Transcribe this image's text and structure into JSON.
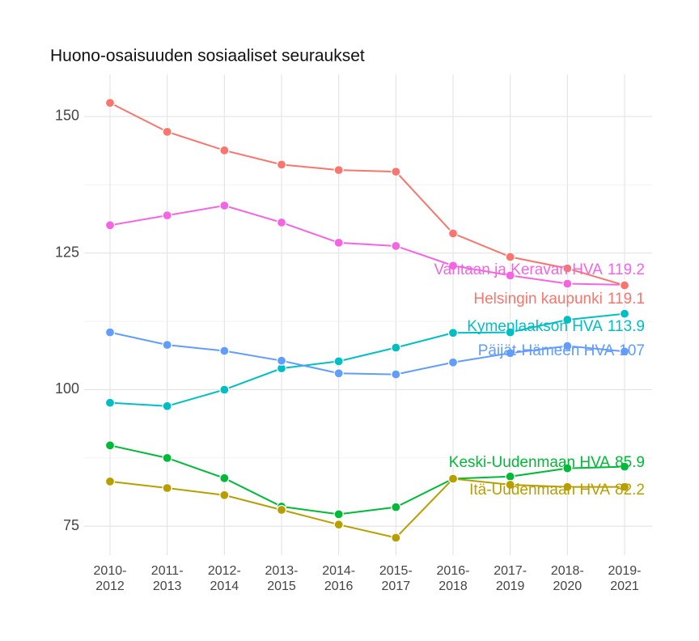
{
  "chart_data": {
    "type": "line",
    "title": "Huono-osaisuuden sosiaaliset seuraukset",
    "categories": [
      "2010-\n2012",
      "2011-\n2013",
      "2012-\n2014",
      "2013-\n2015",
      "2014-\n2016",
      "2015-\n2017",
      "2016-\n2018",
      "2017-\n2019",
      "2018-\n2020",
      "2019-\n2021"
    ],
    "ylim": [
      69.7,
      157.7
    ],
    "yticks": [
      75,
      100,
      125,
      150
    ],
    "y_minor_gridlines": [
      87.5,
      112.5,
      137.5
    ],
    "grid": true,
    "series": [
      {
        "name": "Vantaan ja Keravan HVA",
        "color": "#F564E3",
        "values": [
          130.1,
          131.9,
          133.7,
          130.6,
          126.9,
          126.3,
          122.7,
          120.9,
          119.4,
          119.2
        ]
      },
      {
        "name": "Helsingin kaupunki",
        "color": "#F8766D",
        "values": [
          152.5,
          147.2,
          143.8,
          141.2,
          140.2,
          139.9,
          128.6,
          124.3,
          122.2,
          119.1
        ]
      },
      {
        "name": "Kymenlaakson HVA",
        "color": "#00BFC4",
        "values": [
          97.6,
          97.0,
          100.0,
          103.9,
          105.2,
          107.7,
          110.4,
          110.5,
          112.8,
          113.9
        ]
      },
      {
        "name": "Päijät-Hämeen HVA",
        "color": "#619CFF",
        "values": [
          110.5,
          108.2,
          107.1,
          105.3,
          103.0,
          102.8,
          105.0,
          106.7,
          108.0,
          107
        ]
      },
      {
        "name": "Keski-Uudenmaan HVA",
        "color": "#00BA38",
        "values": [
          89.8,
          87.5,
          83.8,
          78.6,
          77.2,
          78.5,
          83.7,
          84.1,
          85.6,
          85.9
        ]
      },
      {
        "name": "Itä-Uudenmaan HVA",
        "color": "#B79F00",
        "values": [
          83.2,
          82.0,
          80.7,
          78.0,
          75.3,
          72.9,
          83.7,
          82.6,
          82.2,
          82.2
        ]
      }
    ]
  }
}
